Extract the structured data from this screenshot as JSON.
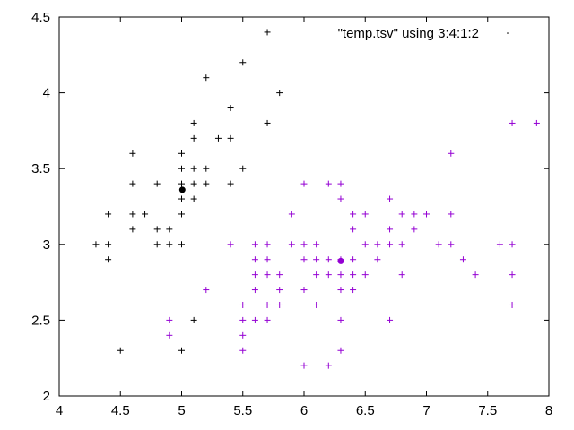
{
  "chart_data": {
    "type": "scatter",
    "title": "",
    "xlabel": "",
    "ylabel": "",
    "xlim": [
      4,
      8
    ],
    "ylim": [
      2,
      4.5
    ],
    "x_ticks": [
      "4",
      "4.5",
      "5",
      "5.5",
      "6",
      "6.5",
      "7",
      "7.5",
      "8"
    ],
    "y_ticks": [
      "2",
      "2.5",
      "3",
      "3.5",
      "4",
      "4.5"
    ],
    "grid": false,
    "legend_position": "top-right",
    "legend_text": "\"temp.tsv\" using 3:4:1:2",
    "colors": {
      "cluster1": "#000000",
      "cluster2": "#9400d3"
    },
    "series": [
      {
        "color": "#000000",
        "points": [
          [
            5.7,
            4.4
          ],
          [
            5.5,
            4.2
          ],
          [
            5.2,
            4.1
          ],
          [
            5.8,
            4.0
          ],
          [
            5.4,
            3.9
          ],
          [
            5.1,
            3.8
          ],
          [
            5.7,
            3.8
          ],
          [
            5.1,
            3.7
          ],
          [
            5.3,
            3.7
          ],
          [
            5.4,
            3.7
          ],
          [
            4.6,
            3.6
          ],
          [
            5.0,
            3.6
          ],
          [
            5.0,
            3.5
          ],
          [
            5.1,
            3.5
          ],
          [
            5.2,
            3.5
          ],
          [
            5.5,
            3.5
          ],
          [
            4.6,
            3.4
          ],
          [
            4.8,
            3.4
          ],
          [
            5.0,
            3.4
          ],
          [
            5.1,
            3.4
          ],
          [
            5.2,
            3.4
          ],
          [
            5.4,
            3.4
          ],
          [
            5.0,
            3.3
          ],
          [
            5.1,
            3.3
          ],
          [
            4.4,
            3.2
          ],
          [
            4.6,
            3.2
          ],
          [
            4.7,
            3.2
          ],
          [
            5.0,
            3.2
          ],
          [
            4.6,
            3.1
          ],
          [
            4.8,
            3.1
          ],
          [
            4.9,
            3.1
          ],
          [
            4.3,
            3.0
          ],
          [
            4.4,
            3.0
          ],
          [
            4.8,
            3.0
          ],
          [
            4.9,
            3.0
          ],
          [
            5.0,
            3.0
          ],
          [
            4.4,
            2.9
          ],
          [
            5.1,
            2.5
          ],
          [
            4.5,
            2.3
          ],
          [
            5.0,
            2.3
          ]
        ]
      },
      {
        "color": "#9400d3",
        "points": [
          [
            7.7,
            3.8
          ],
          [
            7.9,
            3.8
          ],
          [
            7.2,
            3.6
          ],
          [
            6.0,
            3.4
          ],
          [
            6.2,
            3.4
          ],
          [
            6.3,
            3.4
          ],
          [
            6.3,
            3.3
          ],
          [
            6.7,
            3.3
          ],
          [
            5.9,
            3.2
          ],
          [
            6.4,
            3.2
          ],
          [
            6.5,
            3.2
          ],
          [
            6.8,
            3.2
          ],
          [
            6.9,
            3.2
          ],
          [
            7.0,
            3.2
          ],
          [
            7.2,
            3.2
          ],
          [
            6.4,
            3.1
          ],
          [
            6.7,
            3.1
          ],
          [
            6.9,
            3.1
          ],
          [
            5.4,
            3.0
          ],
          [
            5.6,
            3.0
          ],
          [
            5.7,
            3.0
          ],
          [
            5.9,
            3.0
          ],
          [
            6.0,
            3.0
          ],
          [
            6.1,
            3.0
          ],
          [
            6.5,
            3.0
          ],
          [
            6.6,
            3.0
          ],
          [
            6.7,
            3.0
          ],
          [
            6.8,
            3.0
          ],
          [
            7.1,
            3.0
          ],
          [
            7.2,
            3.0
          ],
          [
            7.6,
            3.0
          ],
          [
            7.7,
            3.0
          ],
          [
            5.6,
            2.9
          ],
          [
            5.7,
            2.9
          ],
          [
            6.0,
            2.9
          ],
          [
            6.1,
            2.9
          ],
          [
            6.2,
            2.9
          ],
          [
            6.3,
            2.9
          ],
          [
            6.4,
            2.9
          ],
          [
            6.6,
            2.9
          ],
          [
            7.3,
            2.9
          ],
          [
            5.6,
            2.8
          ],
          [
            5.7,
            2.8
          ],
          [
            5.8,
            2.8
          ],
          [
            6.1,
            2.8
          ],
          [
            6.2,
            2.8
          ],
          [
            6.3,
            2.8
          ],
          [
            6.4,
            2.8
          ],
          [
            6.5,
            2.8
          ],
          [
            6.8,
            2.8
          ],
          [
            7.4,
            2.8
          ],
          [
            7.7,
            2.8
          ],
          [
            5.2,
            2.7
          ],
          [
            5.6,
            2.7
          ],
          [
            5.8,
            2.7
          ],
          [
            6.0,
            2.7
          ],
          [
            6.3,
            2.7
          ],
          [
            6.4,
            2.7
          ],
          [
            5.5,
            2.6
          ],
          [
            5.7,
            2.6
          ],
          [
            5.8,
            2.6
          ],
          [
            6.1,
            2.6
          ],
          [
            7.7,
            2.6
          ],
          [
            4.9,
            2.5
          ],
          [
            5.5,
            2.5
          ],
          [
            5.6,
            2.5
          ],
          [
            5.7,
            2.5
          ],
          [
            6.3,
            2.5
          ],
          [
            6.7,
            2.5
          ],
          [
            4.9,
            2.4
          ],
          [
            5.5,
            2.4
          ],
          [
            5.5,
            2.3
          ],
          [
            6.3,
            2.3
          ],
          [
            6.0,
            2.2
          ],
          [
            6.2,
            2.2
          ]
        ]
      }
    ],
    "centroids": [
      {
        "color": "#000000",
        "x": 5.006,
        "y": 3.36
      },
      {
        "color": "#9400d3",
        "x": 6.3,
        "y": 2.89
      }
    ]
  }
}
